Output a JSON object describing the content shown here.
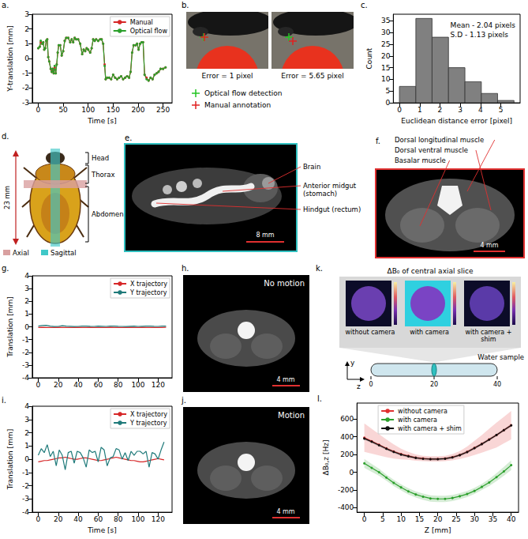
{
  "chart_data": [
    {
      "panel_label": "a.",
      "type": "line",
      "x": [
        0,
        3,
        5,
        8,
        10,
        12,
        14,
        16,
        18,
        20,
        22,
        25,
        27,
        29,
        31,
        33,
        35,
        37,
        39,
        41,
        44,
        47,
        50,
        53,
        56,
        60,
        64,
        67,
        70,
        73,
        76,
        80,
        84,
        88,
        91,
        94,
        97,
        100,
        104,
        107,
        110,
        113,
        116,
        120,
        124,
        127,
        130,
        133,
        135,
        138,
        142,
        146,
        150,
        154,
        158,
        162,
        166,
        170,
        174,
        178,
        182,
        185,
        188,
        191,
        195,
        198,
        201,
        204,
        207,
        210,
        213,
        217,
        221,
        225,
        229,
        233,
        237,
        241,
        245,
        250,
        255
      ],
      "series": [
        {
          "name": "Manual",
          "color": "#d62728",
          "marker": "o",
          "values": [
            0.7,
            0.8,
            1.1,
            1.0,
            1.1,
            0.6,
            0.7,
            1.2,
            1.3,
            0.1,
            -0.2,
            -0.7,
            -0.9,
            -0.7,
            -1.0,
            -0.6,
            -1.0,
            -0.4,
            0.4,
            0.9,
            0.9,
            0.2,
            0.5,
            1.2,
            1.4,
            1.4,
            1.1,
            1.3,
            1.1,
            1.4,
            1.3,
            1.3,
            1.0,
            0.3,
            0.6,
            0.5,
            0.7,
            0.6,
            0.4,
            0.7,
            1.3,
            1.2,
            1.3,
            1.2,
            1.3,
            1.3,
            1.0,
            -0.4,
            -1.4,
            -1.3,
            -1.3,
            -1.4,
            -1.1,
            -1.3,
            -1.4,
            -1.3,
            -1.2,
            -1.4,
            -1.3,
            -1.2,
            -1.3,
            -0.9,
            0.4,
            0.9,
            0.9,
            1.0,
            0.6,
            1.0,
            1.1,
            1.1,
            -1.1,
            -1.3,
            -1.5,
            -1.3,
            -1.4,
            -1.1,
            -1.0,
            -0.9,
            -0.7,
            -0.7,
            -0.6
          ]
        },
        {
          "name": "Optical flow",
          "color": "#2ca02c",
          "marker": "o",
          "values": [
            0.7,
            0.8,
            1.2,
            1.0,
            1.1,
            0.6,
            0.7,
            1.2,
            1.3,
            0.1,
            -0.2,
            -0.7,
            -0.9,
            -0.7,
            -1.0,
            -0.5,
            -1.0,
            -0.4,
            0.4,
            0.9,
            0.9,
            0.2,
            0.5,
            1.2,
            1.4,
            1.4,
            1.1,
            1.3,
            1.1,
            1.4,
            1.3,
            1.3,
            1.0,
            0.3,
            0.6,
            0.5,
            0.7,
            0.6,
            0.4,
            0.7,
            1.3,
            1.2,
            1.3,
            1.2,
            1.3,
            1.3,
            1.0,
            -0.5,
            -1.4,
            -1.3,
            -1.3,
            -1.4,
            -1.1,
            -1.3,
            -1.4,
            -1.3,
            -1.2,
            -1.4,
            -1.3,
            -1.2,
            -1.3,
            -0.9,
            0.4,
            0.9,
            0.9,
            1.0,
            0.6,
            1.0,
            1.1,
            1.1,
            -1.1,
            -1.4,
            -1.5,
            -1.3,
            -1.4,
            -1.1,
            -1.0,
            -0.9,
            -0.7,
            -0.7,
            -0.6
          ]
        }
      ],
      "x_label": "Time [s]",
      "y_label": "Y-translation [mm]",
      "xlim": [
        -12,
        268
      ],
      "xticks": [
        0,
        50,
        100,
        150,
        200,
        250
      ],
      "ylim": [
        -3,
        3
      ],
      "yticks": [
        -3,
        -2,
        -1,
        0,
        1,
        2,
        3
      ],
      "grid": false,
      "legend": "upper right"
    },
    {
      "panel_label": "c.",
      "type": "histogram",
      "bins": [
        0,
        0.81,
        1.61,
        2.42,
        3.23,
        4.04,
        4.84,
        5.65
      ],
      "counts": [
        7,
        36,
        28,
        15,
        9,
        4,
        1
      ],
      "color": "#808080",
      "x_label": "Euclidean distance error [pixel]",
      "y_label": "Count",
      "xlim": [
        -0.3,
        5.95
      ],
      "xticks": [
        0,
        1,
        2,
        3,
        4,
        5
      ],
      "ylim": [
        0,
        37.8
      ],
      "yticks": [
        0,
        5,
        10,
        15,
        20,
        25,
        30,
        35
      ],
      "annotations": [
        "Mean - 2.04 pixels",
        "S.D - 1.13 pixels"
      ],
      "grid": false
    },
    {
      "panel_label": "g.",
      "type": "line",
      "x": [
        0,
        4,
        8,
        12,
        16,
        20,
        24,
        28,
        32,
        36,
        40,
        44,
        48,
        52,
        56,
        60,
        64,
        68,
        72,
        76,
        80,
        84,
        88,
        92,
        96,
        100,
        104,
        108,
        112,
        116,
        120,
        124,
        128
      ],
      "series": [
        {
          "name": "X trajectory",
          "color": "#d62728",
          "marker": "none",
          "values": [
            -0.05,
            -0.04,
            -0.05,
            -0.06,
            -0.05,
            -0.04,
            -0.05,
            -0.05,
            -0.06,
            -0.05,
            -0.04,
            -0.05,
            -0.05,
            -0.04,
            -0.05,
            -0.06,
            -0.05,
            -0.05,
            -0.04,
            -0.05,
            -0.05,
            -0.06,
            -0.05,
            -0.04,
            -0.05,
            -0.05,
            -0.04,
            -0.05,
            -0.05,
            -0.06,
            -0.05,
            -0.05,
            -0.04
          ]
        },
        {
          "name": "Y trajectory",
          "color": "#1f7a7a",
          "marker": "none",
          "values": [
            0.05,
            0.1,
            0.12,
            0.05,
            0.02,
            0.03,
            0.08,
            0.05,
            0.04,
            0.02,
            0.03,
            0.05,
            0.06,
            0.04,
            0.03,
            0.05,
            0.04,
            0.03,
            0.05,
            0.06,
            0.04,
            0.03,
            0.02,
            0.04,
            0.05,
            0.03,
            0.04,
            0.05,
            0.06,
            0.04,
            0.03,
            0.05,
            0.06
          ]
        }
      ],
      "y_label": "Translation [mm]",
      "xlim": [
        -6,
        134
      ],
      "xticks": [
        0,
        20,
        40,
        60,
        80,
        100,
        120
      ],
      "ylim": [
        -4,
        4
      ],
      "yticks": [
        -4,
        -3,
        -2,
        -1,
        0,
        1,
        2,
        3,
        4
      ],
      "grid": false,
      "legend": "upper right"
    },
    {
      "panel_label": "i.",
      "type": "line",
      "x": [
        0,
        3,
        6,
        9,
        12,
        15,
        18,
        21,
        24,
        27,
        30,
        33,
        36,
        39,
        42,
        45,
        48,
        51,
        54,
        57,
        60,
        63,
        66,
        69,
        72,
        75,
        78,
        81,
        84,
        87,
        90,
        93,
        96,
        99,
        102,
        105,
        108,
        111,
        114,
        117,
        120,
        123,
        126
      ],
      "series": [
        {
          "name": "X trajectory",
          "color": "#d62728",
          "marker": "none",
          "values": [
            -0.2,
            -0.15,
            -0.1,
            -0.1,
            -0.05,
            0.0,
            0.05,
            0.1,
            0.1,
            0.15,
            0.1,
            0.05,
            0.0,
            0.0,
            0.05,
            0.1,
            0.1,
            0.05,
            0.0,
            -0.05,
            -0.1,
            -0.1,
            -0.05,
            0.0,
            0.05,
            0.1,
            0.15,
            0.1,
            0.05,
            0.0,
            -0.05,
            -0.1,
            -0.1,
            -0.15,
            -0.2,
            -0.2,
            -0.15,
            -0.1,
            -0.05,
            0.0,
            0.05,
            0.0,
            -0.05
          ]
        },
        {
          "name": "Y trajectory",
          "color": "#1f7a7a",
          "marker": "none",
          "values": [
            0.3,
            0.8,
            0.5,
            1.1,
            0.2,
            0.6,
            -0.5,
            0.7,
            0.3,
            -0.8,
            0.5,
            0.6,
            -0.3,
            0.6,
            0.5,
            0.1,
            -0.6,
            0.7,
            0.5,
            0.6,
            -0.2,
            0.9,
            0.7,
            -0.5,
            0.1,
            0.2,
            0.8,
            0.7,
            0.0,
            0.5,
            -0.1,
            0.6,
            0.3,
            0.6,
            0.6,
            0.4,
            0.6,
            -0.6,
            0.5,
            0.4,
            0.0,
            0.7,
            1.3
          ]
        }
      ],
      "x_label": "Time [s]",
      "y_label": "Translation [mm]",
      "xlim": [
        -6,
        134
      ],
      "xticks": [
        0,
        20,
        40,
        60,
        80,
        100,
        120
      ],
      "ylim": [
        -4,
        4
      ],
      "yticks": [
        -4,
        -3,
        -2,
        -1,
        0,
        1,
        2,
        3,
        4
      ],
      "grid": false,
      "legend": "upper right"
    },
    {
      "panel_label": "l.",
      "type": "line",
      "x": [
        0,
        2,
        4,
        6,
        8,
        10,
        12,
        14,
        16,
        18,
        20,
        22,
        24,
        26,
        28,
        30,
        32,
        34,
        36,
        38,
        40
      ],
      "series": [
        {
          "name": "without camera",
          "color": "#e03030",
          "marker": "o",
          "values": [
            390,
            350,
            310,
            270,
            235,
            205,
            185,
            165,
            155,
            150,
            150,
            155,
            170,
            195,
            230,
            275,
            320,
            370,
            420,
            475,
            530
          ],
          "error": [
            160,
            140,
            120,
            100,
            80,
            60,
            45,
            35,
            30,
            30,
            30,
            30,
            35,
            45,
            60,
            80,
            100,
            120,
            140,
            150,
            160
          ]
        },
        {
          "name": "with camera",
          "color": "#2ca02c",
          "marker": "o",
          "values": [
            100,
            50,
            0,
            -60,
            -120,
            -170,
            -215,
            -250,
            -275,
            -295,
            -300,
            -300,
            -290,
            -270,
            -245,
            -210,
            -165,
            -115,
            -55,
            10,
            80
          ],
          "error": [
            50,
            45,
            40,
            35,
            35,
            35,
            35,
            35,
            35,
            35,
            35,
            35,
            35,
            35,
            35,
            35,
            35,
            40,
            45,
            50,
            55
          ]
        },
        {
          "name": "with camera + shim",
          "color": "#111111",
          "marker": "o",
          "values": [
            380,
            345,
            305,
            265,
            230,
            200,
            180,
            162,
            152,
            148,
            148,
            153,
            168,
            193,
            228,
            272,
            318,
            368,
            420,
            474,
            528
          ],
          "error": [
            15,
            15,
            15,
            15,
            15,
            15,
            15,
            15,
            15,
            15,
            15,
            15,
            15,
            15,
            15,
            15,
            15,
            15,
            15,
            15,
            15
          ]
        }
      ],
      "x_label": "Z [mm]",
      "y_label": "ΔB₀,z [Hz]",
      "xlim": [
        -2,
        42
      ],
      "xticks": [
        0,
        5,
        10,
        15,
        20,
        25,
        30,
        35,
        40
      ],
      "ylim": [
        -450,
        780
      ],
      "yticks": [
        -400,
        -200,
        0,
        200,
        400,
        600
      ],
      "grid": false,
      "legend": "upper center"
    }
  ],
  "figure": {
    "photos": {
      "panel_label": "b.",
      "captions": [
        "Error = 1 pixel",
        "Error = 5.65 pixel"
      ],
      "legend": [
        {
          "name": "Optical flow detection",
          "color": "#22c422"
        },
        {
          "name": "Manual annotation",
          "color": "#e02020"
        }
      ]
    },
    "beetle": {
      "panel_label": "d.",
      "size": "23 mm",
      "parts": [
        "Head",
        "Thorax",
        "Abdomen"
      ],
      "legend": [
        {
          "name": "Axial",
          "color": "#d9a0a0"
        },
        {
          "name": "Sagittal",
          "color": "#40c8c8"
        }
      ]
    },
    "sagittal": {
      "panel_label": "e.",
      "labels": [
        "Brain",
        "Anterior midgut (stomach)",
        "Hindgut (rectum)"
      ],
      "scale": "8 mm"
    },
    "axial": {
      "panel_label": "f.",
      "labels": [
        "Dorsal longitudinal muscle",
        "Dorsal ventral muscle",
        "Basalar muscle"
      ],
      "scale": "4 mm"
    },
    "no_motion": {
      "panel_label": "h.",
      "title": "No motion",
      "scale": "4 mm"
    },
    "motion": {
      "panel_label": "j.",
      "title": "Motion",
      "scale": "4 mm"
    },
    "field_maps": {
      "panel_label": "k.",
      "title": "ΔB₀ of central axial slice",
      "maps": [
        "without camera",
        "with camera",
        "with camera + shim"
      ],
      "sample": "Water sample",
      "axes": [
        "y",
        "z"
      ],
      "ticks": [
        0,
        20,
        40
      ]
    }
  }
}
